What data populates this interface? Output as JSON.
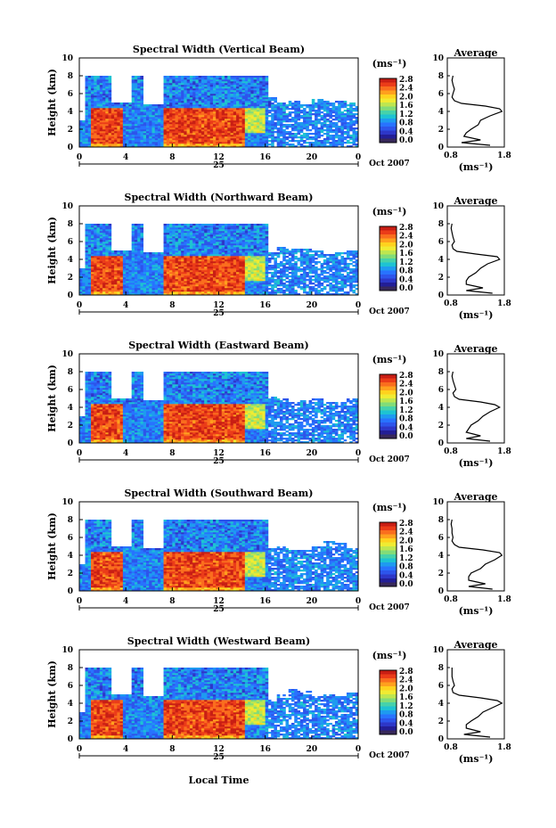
{
  "colorbar": {
    "unit_label": "(ms⁻¹)",
    "tick_labels": [
      "2.8",
      "2.4",
      "2.0",
      "1.6",
      "1.2",
      "0.8",
      "0.4",
      "0.0"
    ],
    "colors": [
      "#c81e14",
      "#eb3c19",
      "#fa6e1e",
      "#ffa01e",
      "#ffd21e",
      "#f0eb32",
      "#bee650",
      "#82dc78",
      "#46d2aa",
      "#1ec3d2",
      "#1e9bf0",
      "#2873ff",
      "#2d55eb",
      "#2d37c8",
      "#231e96",
      "#37285a"
    ]
  },
  "shared_axes": {
    "height_ylabel": "Height (km)",
    "time_xlabel": "Local Time",
    "time_ticks": [
      "0",
      "4",
      "8",
      "12",
      "16",
      "20",
      "0"
    ],
    "date_day": "25",
    "date_label": "Oct 2007",
    "height_ticks": [
      "0",
      "2",
      "4",
      "6",
      "8",
      "10"
    ],
    "avg_title": "Average",
    "avg_ticks": [
      "0.8",
      "1.8"
    ],
    "avg_xlabel": "(ms⁻¹)"
  },
  "chart_data": [
    {
      "type": "heatmap",
      "title": "Spectral Width (Vertical Beam)",
      "xlabel": "",
      "ylabel": "Height (km)",
      "xlim": [
        0,
        24
      ],
      "ylim": [
        0,
        10
      ],
      "clim": [
        0,
        3.0
      ],
      "x_unit": "local time (h)",
      "date": "25 Oct 2007",
      "average_profile": {
        "title": "Average",
        "xlabel": "(ms⁻¹)",
        "xlim": [
          0.6,
          1.8
        ],
        "ylim": [
          0,
          10
        ],
        "height": [
          0.2,
          0.5,
          0.8,
          1.2,
          1.6,
          2.0,
          2.5,
          3.0,
          3.5,
          4.0,
          4.3,
          4.6,
          4.9,
          5.2,
          5.6,
          6.0,
          6.5,
          7.0,
          7.5,
          8.0
        ],
        "width": [
          1.5,
          0.9,
          1.3,
          0.95,
          1.0,
          1.1,
          1.25,
          1.3,
          1.5,
          1.75,
          1.7,
          1.4,
          0.9,
          0.75,
          0.7,
          0.72,
          0.75,
          0.72,
          0.7,
          0.72
        ]
      }
    },
    {
      "type": "heatmap",
      "title": "Spectral Width (Northward Beam)",
      "xlabel": "",
      "ylabel": "Height (km)",
      "xlim": [
        0,
        24
      ],
      "ylim": [
        0,
        10
      ],
      "clim": [
        0,
        3.0
      ],
      "x_unit": "local time (h)",
      "date": "25 Oct 2007",
      "average_profile": {
        "title": "Average",
        "xlabel": "(ms⁻¹)",
        "xlim": [
          0.6,
          1.8
        ],
        "ylim": [
          0,
          10
        ],
        "height": [
          0.2,
          0.5,
          0.8,
          1.2,
          1.6,
          2.0,
          2.5,
          3.0,
          3.5,
          4.0,
          4.3,
          4.6,
          4.9,
          5.2,
          5.6,
          6.0,
          6.5,
          7.0,
          7.5,
          8.0
        ],
        "width": [
          1.55,
          1.0,
          1.35,
          1.0,
          1.0,
          1.05,
          1.2,
          1.3,
          1.45,
          1.7,
          1.65,
          1.2,
          0.8,
          0.72,
          0.7,
          0.75,
          0.72,
          0.7,
          0.68,
          0.7
        ]
      }
    },
    {
      "type": "heatmap",
      "title": "Spectral Width (Eastward Beam)",
      "xlabel": "",
      "ylabel": "Height (km)",
      "xlim": [
        0,
        24
      ],
      "ylim": [
        0,
        10
      ],
      "clim": [
        0,
        3.0
      ],
      "x_unit": "local time (h)",
      "date": "25 Oct 2007",
      "average_profile": {
        "title": "Average",
        "xlabel": "(ms⁻¹)",
        "xlim": [
          0.6,
          1.8
        ],
        "ylim": [
          0,
          10
        ],
        "height": [
          0.2,
          0.5,
          0.8,
          1.2,
          1.6,
          2.0,
          2.5,
          3.0,
          3.5,
          4.0,
          4.3,
          4.6,
          4.9,
          5.2,
          5.6,
          6.0,
          6.5,
          7.0,
          7.5,
          8.0
        ],
        "width": [
          1.5,
          1.0,
          1.3,
          1.0,
          1.05,
          1.1,
          1.25,
          1.35,
          1.5,
          1.7,
          1.6,
          1.3,
          0.85,
          0.75,
          0.72,
          0.78,
          0.75,
          0.72,
          0.7,
          0.72
        ]
      }
    },
    {
      "type": "heatmap",
      "title": "Spectral Width (Southward Beam)",
      "xlabel": "",
      "ylabel": "Height (km)",
      "xlim": [
        0,
        24
      ],
      "ylim": [
        0,
        10
      ],
      "clim": [
        0,
        3.0
      ],
      "x_unit": "local time (h)",
      "date": "25 Oct 2007",
      "average_profile": {
        "title": "Average",
        "xlabel": "(ms⁻¹)",
        "xlim": [
          0.6,
          1.8
        ],
        "ylim": [
          0,
          10
        ],
        "height": [
          0.2,
          0.5,
          0.8,
          1.2,
          1.6,
          2.0,
          2.5,
          3.0,
          3.5,
          4.0,
          4.3,
          4.6,
          4.9,
          5.2,
          5.6,
          6.0,
          6.5,
          7.0,
          7.5,
          8.0
        ],
        "width": [
          1.55,
          1.05,
          1.4,
          1.05,
          1.05,
          1.1,
          1.3,
          1.4,
          1.6,
          1.75,
          1.7,
          1.35,
          0.85,
          0.75,
          0.7,
          0.72,
          0.7,
          0.7,
          0.68,
          0.7
        ]
      }
    },
    {
      "type": "heatmap",
      "title": "Spectral Width (Westward Beam)",
      "xlabel": "Local Time",
      "ylabel": "Height (km)",
      "xlim": [
        0,
        24
      ],
      "ylim": [
        0,
        10
      ],
      "clim": [
        0,
        3.0
      ],
      "x_unit": "local time (h)",
      "date": "25 Oct 2007",
      "average_profile": {
        "title": "Average",
        "xlabel": "(ms⁻¹)",
        "xlim": [
          0.6,
          1.8
        ],
        "ylim": [
          0,
          10
        ],
        "height": [
          0.2,
          0.5,
          0.8,
          1.2,
          1.6,
          2.0,
          2.5,
          3.0,
          3.5,
          4.0,
          4.3,
          4.6,
          4.9,
          5.2,
          5.6,
          6.0,
          6.5,
          7.0,
          7.5,
          8.0
        ],
        "width": [
          1.5,
          0.95,
          1.3,
          1.0,
          1.0,
          1.1,
          1.25,
          1.35,
          1.55,
          1.75,
          1.65,
          1.3,
          0.85,
          0.72,
          0.7,
          0.75,
          0.72,
          0.7,
          0.7,
          0.7
        ]
      }
    }
  ]
}
